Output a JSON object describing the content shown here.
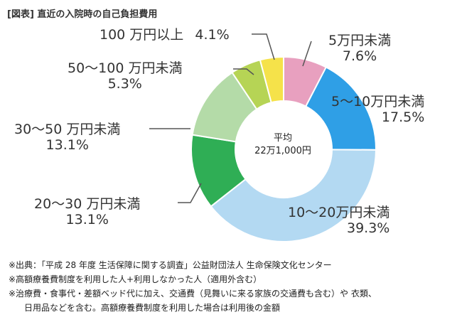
{
  "header": {
    "title": "[図表] 直近の入院時の自己負担費用"
  },
  "colors": {
    "leader_line": "#555555",
    "slices": [
      "#e8a0bf",
      "#2f9fe6",
      "#b3d9f2",
      "#2fae55",
      "#b4dba8",
      "#b6d455",
      "#f5e24a"
    ]
  },
  "center": {
    "line1": "平均",
    "line2": "22万1,000円"
  },
  "chart_data": {
    "type": "pie",
    "donut": true,
    "title": "",
    "slices": [
      {
        "label": "5万円未満",
        "value": 7.6,
        "value_label": "7.6%"
      },
      {
        "label": "5～10万円未満",
        "value": 17.5,
        "value_label": "17.5%"
      },
      {
        "label": "10～20万円未満",
        "value": 39.3,
        "value_label": "39.3%"
      },
      {
        "label": "20～30 万円未満",
        "value": 13.1,
        "value_label": "13.1%"
      },
      {
        "label": "30～50 万円未満",
        "value": 13.1,
        "value_label": "13.1%"
      },
      {
        "label": "50～100 万円未満",
        "value": 5.3,
        "value_label": "5.3%"
      },
      {
        "label": "100 万円以上",
        "value": 4.1,
        "value_label": "4.1%"
      }
    ]
  },
  "notes": [
    "※出典：「平成 28 年度 生活保障に関する調査」公益財団法人 生命保険文化センター",
    "※高額療養費制度を利用した人+利用しなかった人（適用外含む）",
    "※治療費・食事代・差額ベッド代に加え、交通費（見舞いに来る家族の交通費も含む）や 衣類、",
    "日用品などを含む。高額療養費制度を利用した場合は利用後の金額"
  ]
}
